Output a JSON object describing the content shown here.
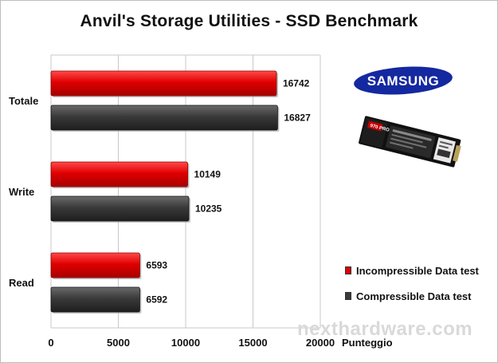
{
  "chart_data": {
    "type": "bar",
    "orientation": "horizontal",
    "title": "Anvil's Storage Utilities - SSD Benchmark",
    "categories": [
      "Totale",
      "Write",
      "Read"
    ],
    "series": [
      {
        "name": "Incompressible Data test",
        "values": [
          16742,
          10149,
          6593
        ],
        "color": "#e00000"
      },
      {
        "name": "Compressible Data test",
        "values": [
          16827,
          10235,
          6592
        ],
        "color": "#3a3a3a"
      }
    ],
    "xlabel": "Punteggio",
    "xlim": [
      0,
      20000
    ],
    "xticks": [
      0,
      5000,
      10000,
      15000,
      20000
    ],
    "grid": true,
    "legend_position": "right"
  },
  "logo_text": "SAMSUNG",
  "ssd_badge": "970 PRO",
  "watermark": "nexthardware.com"
}
